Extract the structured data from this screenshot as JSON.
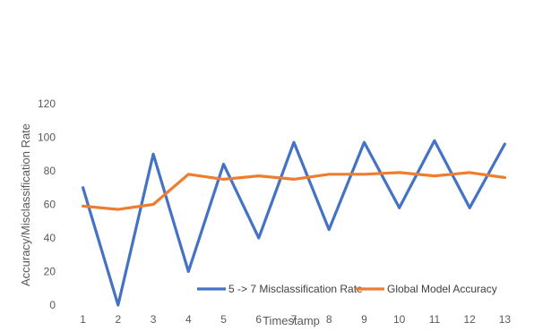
{
  "chart_data": {
    "type": "line",
    "title": "",
    "xlabel": "Timestamp",
    "ylabel": "Accuracy/Misclassification Rate",
    "x": [
      "1",
      "2",
      "3",
      "4",
      "5",
      "6",
      "7",
      "8",
      "9",
      "10",
      "11",
      "12",
      "13"
    ],
    "yticks": [
      0,
      20,
      40,
      60,
      80,
      100,
      120
    ],
    "ylim": [
      0,
      120
    ],
    "grid": false,
    "legend_position": "bottom-right",
    "series": [
      {
        "name": "5 -> 7 Misclassification Rate",
        "color": "#4472C4",
        "values": [
          70,
          0,
          90,
          20,
          84,
          40,
          97,
          45,
          97,
          58,
          98,
          58,
          96
        ]
      },
      {
        "name": "Global Model Accuracy",
        "color": "#ED7D31",
        "values": [
          59,
          57,
          60,
          78,
          75,
          77,
          75,
          78,
          78,
          79,
          77,
          79,
          76
        ]
      }
    ]
  }
}
